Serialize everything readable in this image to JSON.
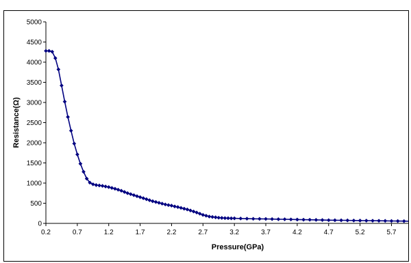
{
  "chart_data": {
    "type": "line",
    "title": "",
    "xlabel": "Pressure(GPa)",
    "ylabel": "Resistance(Ω)",
    "xlim": [
      0.2,
      6.0
    ],
    "ylim": [
      0,
      5000
    ],
    "grid": false,
    "legend": "none",
    "x_ticks": [
      "0.2",
      "0.7",
      "1.2",
      "1.7",
      "2.2",
      "2.7",
      "3.2",
      "3.7",
      "4.2",
      "4.7",
      "5.2",
      "5.7"
    ],
    "y_ticks": [
      "0",
      "500",
      "1000",
      "1500",
      "2000",
      "2500",
      "3000",
      "3500",
      "4000",
      "4500",
      "5000"
    ],
    "line_color": "#000080",
    "series": [
      {
        "x": [
          0.2,
          0.25,
          0.3,
          0.35,
          0.4,
          0.45,
          0.5,
          0.55,
          0.6,
          0.65,
          0.7,
          0.75,
          0.8,
          0.85,
          0.9,
          0.95,
          1.0,
          1.05,
          1.1,
          1.15,
          1.2,
          1.25,
          1.3,
          1.35,
          1.4,
          1.45,
          1.5,
          1.55,
          1.6,
          1.65,
          1.7,
          1.75,
          1.8,
          1.85,
          1.9,
          1.95,
          2.0,
          2.05,
          2.1,
          2.15,
          2.2,
          2.25,
          2.3,
          2.35,
          2.4,
          2.45,
          2.5,
          2.55,
          2.6,
          2.65,
          2.7,
          2.75,
          2.8,
          2.85,
          2.9,
          2.95,
          3.0,
          3.05,
          3.1,
          3.15,
          3.2,
          3.3,
          3.4,
          3.5,
          3.6,
          3.7,
          3.8,
          3.9,
          4.0,
          4.1,
          4.2,
          4.3,
          4.4,
          4.5,
          4.6,
          4.7,
          4.8,
          4.9,
          5.0,
          5.1,
          5.2,
          5.3,
          5.4,
          5.5,
          5.6,
          5.7,
          5.8,
          5.9,
          6.0
        ],
        "values": [
          4280,
          4280,
          4260,
          4100,
          3820,
          3420,
          3020,
          2640,
          2300,
          1980,
          1710,
          1480,
          1280,
          1110,
          1010,
          970,
          950,
          940,
          930,
          915,
          900,
          880,
          860,
          835,
          810,
          780,
          750,
          725,
          700,
          675,
          650,
          625,
          600,
          575,
          550,
          530,
          510,
          490,
          470,
          455,
          440,
          420,
          405,
          385,
          365,
          345,
          320,
          295,
          270,
          240,
          210,
          190,
          170,
          160,
          150,
          140,
          135,
          130,
          128,
          126,
          125,
          120,
          117,
          114,
          112,
          110,
          107,
          104,
          101,
          98,
          95,
          92,
          89,
          86,
          83,
          80,
          78,
          76,
          74,
          72,
          70,
          68,
          66,
          64,
          62,
          60,
          58,
          56,
          55
        ]
      }
    ]
  }
}
